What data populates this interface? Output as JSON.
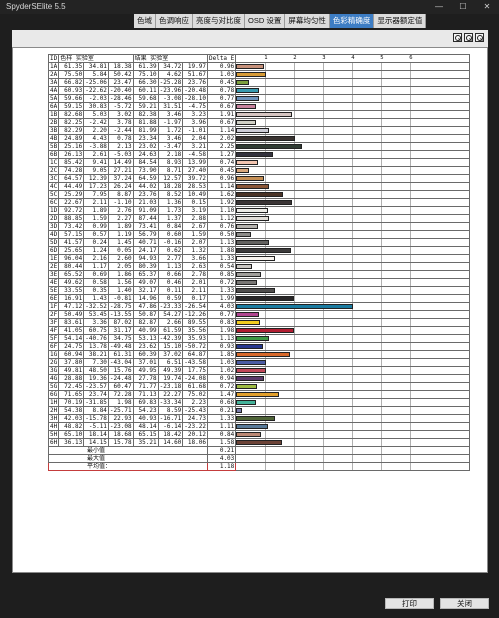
{
  "window": {
    "title": "SpyderSElite 5.5",
    "minimize_glyph": "—",
    "maximize_glyph": "☐",
    "close_glyph": "✕"
  },
  "tabs": [
    {
      "label": "色域",
      "active": false
    },
    {
      "label": "色调响应",
      "active": false
    },
    {
      "label": "亮度与对比度",
      "active": false
    },
    {
      "label": "OSD 设置",
      "active": false
    },
    {
      "label": "屏幕均匀性",
      "active": false
    },
    {
      "label": "色彩精确度",
      "active": true
    },
    {
      "label": "显示器额定值",
      "active": false
    }
  ],
  "toolbar": {
    "icons": [
      "zoom-in-icon",
      "zoom-out-icon",
      "zoom-fit-icon"
    ]
  },
  "report": {
    "headers": {
      "id": "ID",
      "target": "色样 实验室",
      "result": "结果 实验室",
      "delta": "Delta E"
    },
    "scale_ticks": [
      "1",
      "2",
      "3",
      "4",
      "5",
      "6"
    ],
    "rows": [
      [
        "1A",
        "61.35",
        "34.81",
        "18.38",
        "61.39",
        "34.72",
        "19.97",
        "0.96",
        "#c5907a"
      ],
      [
        "2A",
        "75.50",
        "5.84",
        "50.42",
        "75.10",
        "4.62",
        "51.67",
        "1.03",
        "#d69a35"
      ],
      [
        "3A",
        "66.82",
        "-25.06",
        "23.47",
        "66.30",
        "-25.28",
        "23.76",
        "0.45",
        "#7d9f3d"
      ],
      [
        "4A",
        "60.93",
        "-22.62",
        "-20.40",
        "60.11",
        "-23.96",
        "-20.48",
        "0.78",
        "#3a9bb0"
      ],
      [
        "5A",
        "59.66",
        "-2.03",
        "-28.46",
        "59.68",
        "-3.08",
        "-28.10",
        "0.77",
        "#6f93bb"
      ],
      [
        "6A",
        "59.15",
        "30.83",
        "-5.72",
        "59.21",
        "31.51",
        "-4.75",
        "0.67",
        "#c7829d"
      ],
      [
        "1B",
        "82.68",
        "5.03",
        "3.02",
        "82.38",
        "3.46",
        "3.23",
        "1.91",
        "#d6c6c2"
      ],
      [
        "2B",
        "82.25",
        "-2.42",
        "3.78",
        "81.88",
        "-1.97",
        "3.96",
        "0.67",
        "#d0d0c6"
      ],
      [
        "3B",
        "82.29",
        "2.20",
        "-2.44",
        "81.99",
        "1.72",
        "-1.01",
        "1.14",
        "#cdcdd7"
      ],
      [
        "4B",
        "24.89",
        "4.43",
        "0.78",
        "23.34",
        "3.46",
        "2.04",
        "2.02",
        "#3a3431"
      ],
      [
        "5B",
        "25.16",
        "-3.88",
        "2.13",
        "23.02",
        "-3.47",
        "3.21",
        "2.25",
        "#2f3b33"
      ],
      [
        "6B",
        "26.13",
        "2.61",
        "-5.03",
        "24.63",
        "2.18",
        "-4.58",
        "1.27",
        "#34333e"
      ],
      [
        "1C",
        "85.42",
        "9.41",
        "14.49",
        "84.54",
        "8.93",
        "13.99",
        "0.74",
        "#f2c5b0"
      ],
      [
        "2C",
        "74.28",
        "9.05",
        "27.21",
        "73.90",
        "8.71",
        "27.40",
        "0.45",
        "#d9a87c"
      ],
      [
        "3C",
        "64.57",
        "12.39",
        "37.24",
        "64.59",
        "12.57",
        "39.72",
        "0.96",
        "#c58f55"
      ],
      [
        "4C",
        "44.49",
        "17.23",
        "26.24",
        "44.02",
        "18.28",
        "28.53",
        "1.14",
        "#8a5637"
      ],
      [
        "5C",
        "25.29",
        "7.95",
        "8.87",
        "23.76",
        "8.52",
        "10.49",
        "1.62",
        "#4a3326"
      ],
      [
        "6C",
        "22.67",
        "2.11",
        "-1.10",
        "21.03",
        "1.36",
        "0.15",
        "1.92",
        "#3b3536"
      ],
      [
        "1D",
        "92.72",
        "1.89",
        "2.76",
        "91.09",
        "1.73",
        "3.19",
        "1.10",
        "#ecebe6"
      ],
      [
        "2D",
        "88.85",
        "1.59",
        "2.27",
        "87.44",
        "1.37",
        "2.88",
        "1.12",
        "#e1ddd7"
      ],
      [
        "3D",
        "73.42",
        "0.99",
        "1.89",
        "73.41",
        "0.84",
        "2.67",
        "0.76",
        "#b4b2ae"
      ],
      [
        "4D",
        "57.15",
        "0.57",
        "1.19",
        "56.79",
        "0.60",
        "1.59",
        "0.50",
        "#8c8b88"
      ],
      [
        "5D",
        "41.57",
        "0.24",
        "1.45",
        "40.71",
        "-0.16",
        "2.07",
        "1.13",
        "#636260"
      ],
      [
        "6D",
        "25.65",
        "1.24",
        "0.05",
        "24.17",
        "0.62",
        "1.32",
        "1.88",
        "#3d3b3b"
      ],
      [
        "1E",
        "96.04",
        "2.16",
        "2.60",
        "94.93",
        "2.77",
        "3.66",
        "1.33",
        "#f7f3ee"
      ],
      [
        "2E",
        "80.44",
        "1.17",
        "2.05",
        "80.39",
        "1.13",
        "2.63",
        "0.54",
        "#c9c6c2"
      ],
      [
        "3E",
        "65.52",
        "0.69",
        "1.86",
        "65.37",
        "0.66",
        "2.78",
        "0.85",
        "#a09e9a"
      ],
      [
        "4E",
        "49.62",
        "0.58",
        "1.56",
        "49.07",
        "0.46",
        "2.01",
        "0.72",
        "#787674"
      ],
      [
        "5E",
        "33.55",
        "0.35",
        "1.40",
        "32.17",
        "0.11",
        "2.11",
        "1.33",
        "#504e4d"
      ],
      [
        "6E",
        "16.91",
        "1.43",
        "-0.81",
        "14.96",
        "0.59",
        "0.17",
        "1.99",
        "#282627"
      ],
      [
        "1F",
        "47.12",
        "-32.52",
        "-28.75",
        "47.86",
        "-23.33",
        "-26.54",
        "4.03",
        "#1a7ba0"
      ],
      [
        "2F",
        "50.49",
        "53.45",
        "-13.55",
        "50.87",
        "54.27",
        "-12.26",
        "0.77",
        "#b04690"
      ],
      [
        "3F",
        "83.61",
        "3.36",
        "87.02",
        "82.87",
        "2.66",
        "89.55",
        "0.83",
        "#f1cc1e"
      ],
      [
        "4F",
        "41.05",
        "60.75",
        "31.17",
        "40.99",
        "61.59",
        "35.56",
        "1.98",
        "#b11e32"
      ],
      [
        "5F",
        "54.14",
        "-40.76",
        "34.75",
        "53.13",
        "-42.39",
        "35.93",
        "1.13",
        "#3f9845"
      ],
      [
        "6F",
        "24.75",
        "13.78",
        "-49.48",
        "23.62",
        "15.10",
        "-50.72",
        "0.93",
        "#27388f"
      ],
      [
        "1G",
        "60.94",
        "38.21",
        "61.31",
        "60.39",
        "37.02",
        "64.87",
        "1.85",
        "#d8692a"
      ],
      [
        "2G",
        "37.80",
        "7.30",
        "-43.04",
        "37.01",
        "6.51",
        "-43.58",
        "1.03",
        "#4b5ba3"
      ],
      [
        "3G",
        "49.81",
        "48.50",
        "15.76",
        "49.95",
        "49.39",
        "17.75",
        "1.02",
        "#c0485a"
      ],
      [
        "4G",
        "28.88",
        "19.36",
        "-24.48",
        "27.78",
        "19.74",
        "-24.08",
        "0.94",
        "#5b3a6b"
      ],
      [
        "5G",
        "72.45",
        "-23.57",
        "60.47",
        "71.77",
        "-23.18",
        "61.68",
        "0.72",
        "#9ebc43"
      ],
      [
        "6G",
        "71.65",
        "23.74",
        "72.28",
        "71.13",
        "22.27",
        "75.02",
        "1.47",
        "#e2a02c"
      ],
      [
        "1H",
        "70.19",
        "-31.85",
        "1.98",
        "69.83",
        "-33.34",
        "2.23",
        "0.68",
        "#44b39a"
      ],
      [
        "2H",
        "54.38",
        "8.84",
        "-25.71",
        "54.23",
        "8.59",
        "-25.43",
        "0.21",
        "#7a7cad"
      ],
      [
        "3H",
        "42.03",
        "-15.78",
        "22.93",
        "40.93",
        "-16.71",
        "24.73",
        "1.33",
        "#4f6437"
      ],
      [
        "4H",
        "48.82",
        "-5.11",
        "-23.08",
        "48.14",
        "-6.14",
        "-23.22",
        "1.11",
        "#587a99"
      ],
      [
        "5H",
        "65.10",
        "18.14",
        "18.68",
        "65.15",
        "18.42",
        "20.12",
        "0.84",
        "#bb8873"
      ],
      [
        "6H",
        "36.13",
        "14.15",
        "15.78",
        "35.21",
        "14.60",
        "18.06",
        "1.58",
        "#6c4337"
      ]
    ],
    "summary": [
      {
        "label": "最小值",
        "value": "0.21"
      },
      {
        "label": "最大值",
        "value": "4.03"
      },
      {
        "label": "平均值：",
        "value": "1.18"
      }
    ]
  },
  "footer": {
    "print_label": "打印",
    "close_label": "关闭"
  }
}
